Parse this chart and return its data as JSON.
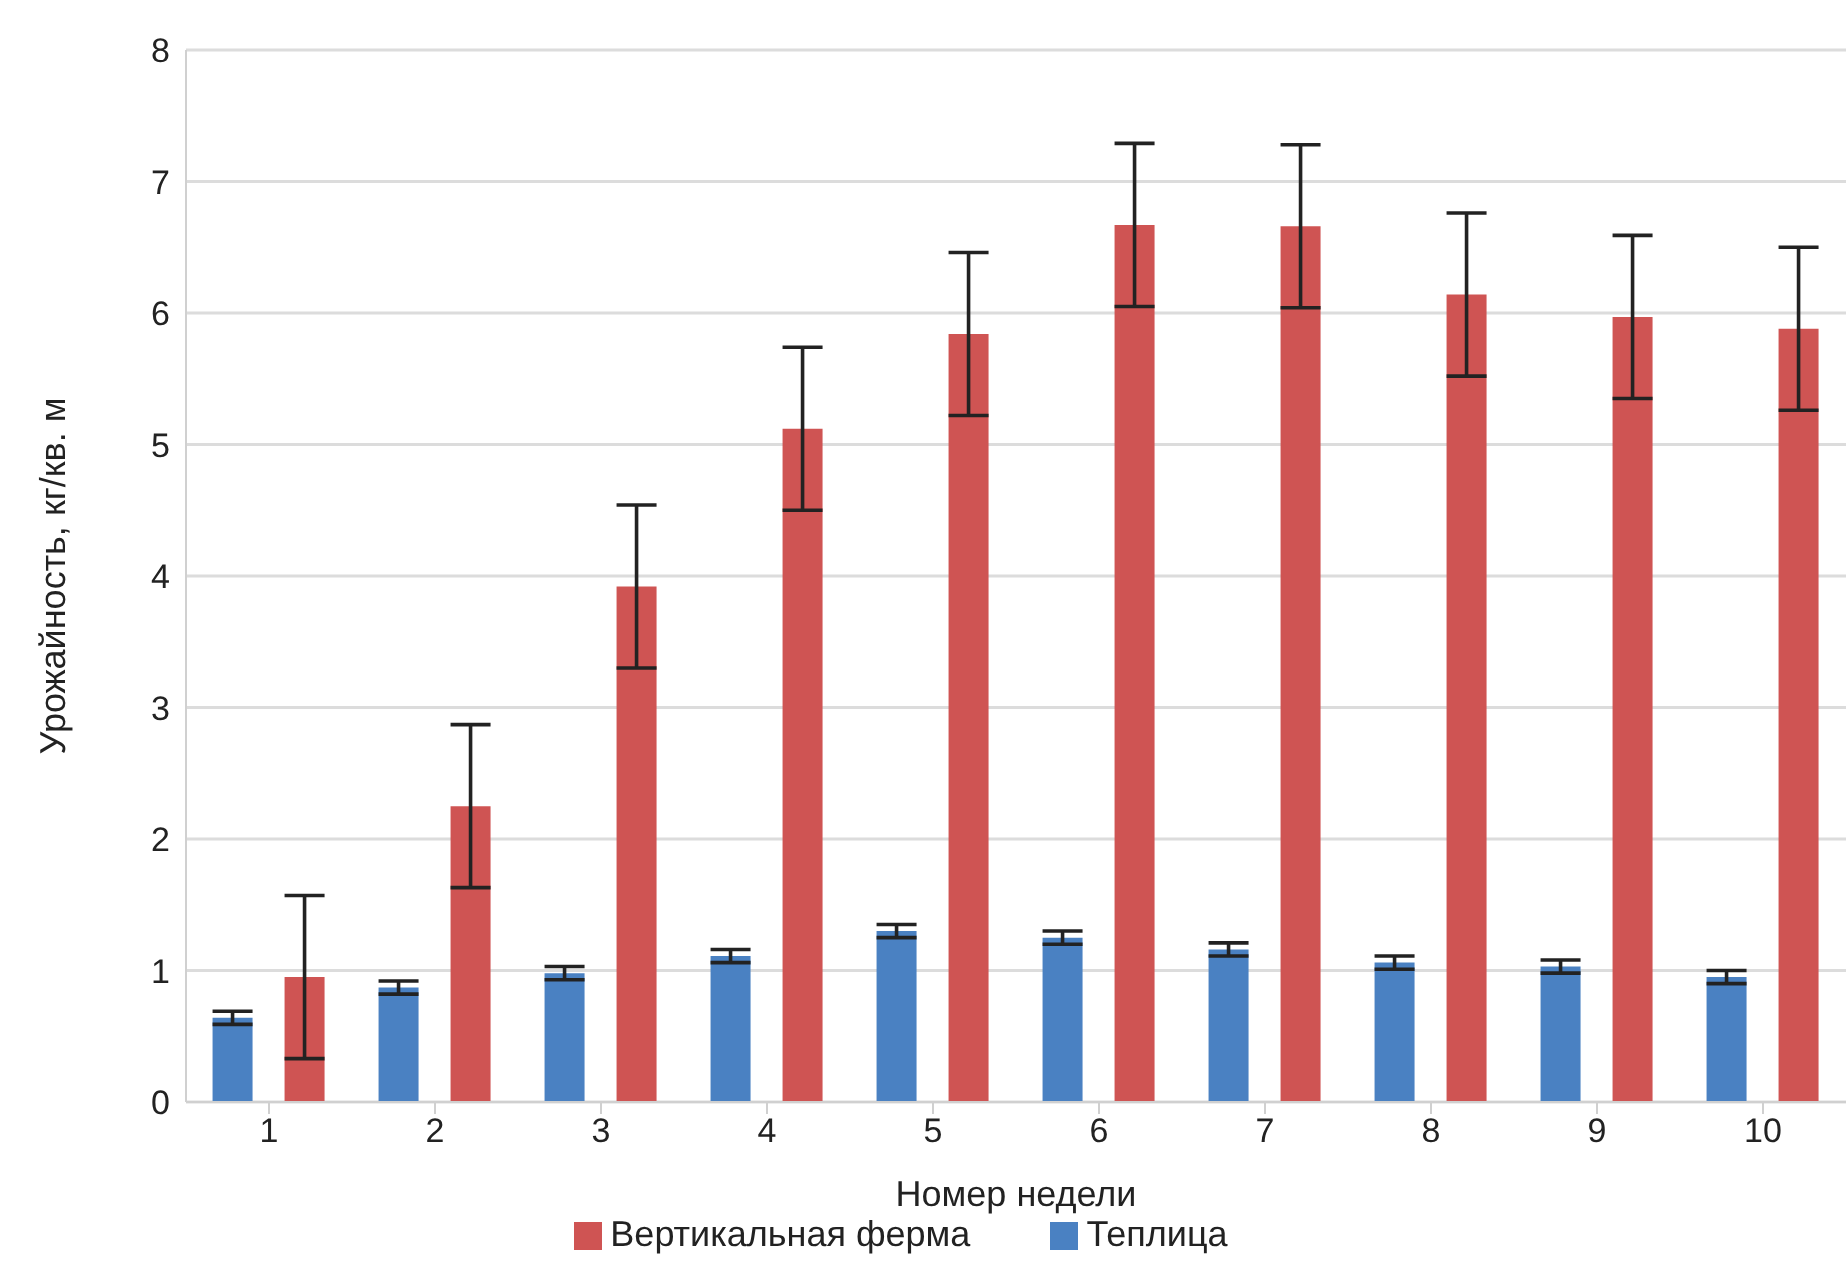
{
  "chart_data": {
    "type": "bar",
    "xlabel": "Номер недели",
    "ylabel": "Урожайность, кг/кв. м",
    "categories": [
      "1",
      "2",
      "3",
      "4",
      "5",
      "6",
      "7",
      "8",
      "9",
      "10"
    ],
    "series": [
      {
        "name": "Теплица",
        "color": "#4a81c2",
        "values": [
          0.64,
          0.87,
          0.98,
          1.11,
          1.3,
          1.25,
          1.16,
          1.06,
          1.03,
          0.95
        ],
        "errors": [
          0.05,
          0.05,
          0.05,
          0.05,
          0.05,
          0.05,
          0.05,
          0.05,
          0.05,
          0.05
        ]
      },
      {
        "name": "Вертикальная ферма",
        "color": "#cf5453",
        "values": [
          0.95,
          2.25,
          3.92,
          5.12,
          5.84,
          6.67,
          6.66,
          6.14,
          5.97,
          5.88
        ],
        "errors": [
          0.62,
          0.62,
          0.62,
          0.62,
          0.62,
          0.62,
          0.62,
          0.62,
          0.62,
          0.62
        ]
      }
    ],
    "ylim": [
      0,
      8
    ],
    "yticks": [
      0,
      1,
      2,
      3,
      4,
      5,
      6,
      7,
      8
    ],
    "grid": "y",
    "legend": "bottom"
  }
}
